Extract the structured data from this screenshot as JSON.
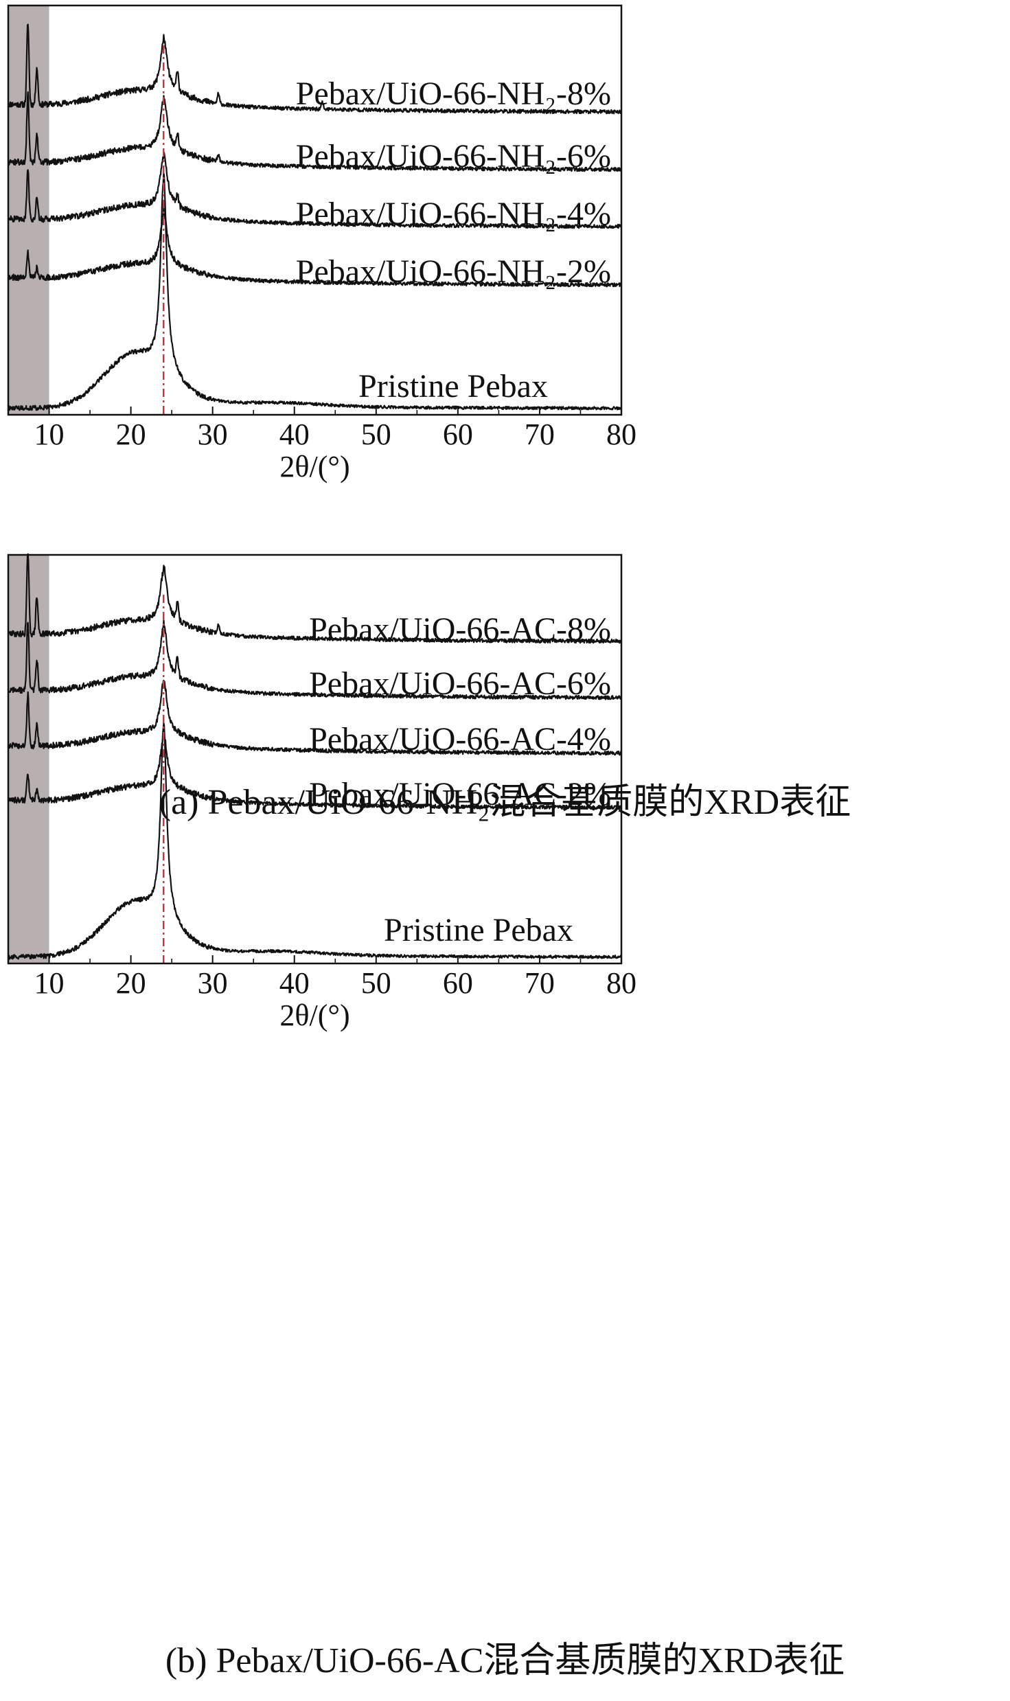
{
  "chart_data": [
    {
      "panel": "a",
      "type": "line",
      "caption": "(a) Pebax/UiO-66-NH₂混合基质膜的XRD表征",
      "xlabel": "2θ/(°)",
      "ylabel": "",
      "xlim": [
        5,
        80
      ],
      "xticks": [
        10,
        20,
        30,
        40,
        50,
        60,
        70,
        80
      ],
      "y_axis": "none (stacked offset traces, arbitrary intensity)",
      "shaded_region": [
        5,
        10
      ],
      "reference_line_x": 24,
      "grid": false,
      "series": [
        {
          "name": "Pebax/UiO-66-NH₂-8%",
          "sharp_peaks": [
            {
              "x": 7.4,
              "h": 1.0
            },
            {
              "x": 8.5,
              "h": 0.45
            },
            {
              "x": 25.7,
              "h": 0.25
            },
            {
              "x": 30.7,
              "h": 0.12
            },
            {
              "x": 43.4,
              "h": 0.08
            }
          ],
          "mof_loading": 8,
          "main_peak_x": 24.0,
          "text": "Pebax/UiO-66-NH₂-8%"
        },
        {
          "name": "Pebax/UiO-66-NH₂-6%",
          "sharp_peaks": [
            {
              "x": 7.4,
              "h": 0.85
            },
            {
              "x": 8.5,
              "h": 0.35
            },
            {
              "x": 25.7,
              "h": 0.18
            },
            {
              "x": 30.7,
              "h": 0.08
            }
          ],
          "mof_loading": 6,
          "main_peak_x": 24.0,
          "text": "Pebax/UiO-66-NH₂-6%"
        },
        {
          "name": "Pebax/UiO-66-NH₂-4%",
          "sharp_peaks": [
            {
              "x": 7.4,
              "h": 0.6
            },
            {
              "x": 8.5,
              "h": 0.25
            },
            {
              "x": 25.7,
              "h": 0.12
            }
          ],
          "mof_loading": 4,
          "main_peak_x": 24.0,
          "text": "Pebax/UiO-66-NH₂-4%"
        },
        {
          "name": "Pebax/UiO-66-NH₂-2%",
          "sharp_peaks": [
            {
              "x": 7.4,
              "h": 0.3
            },
            {
              "x": 8.5,
              "h": 0.12
            }
          ],
          "mof_loading": 2,
          "main_peak_x": 24.0,
          "text": "Pebax/UiO-66-NH₂-2%"
        },
        {
          "name": "Pristine Pebax",
          "sharp_peaks": [],
          "mof_loading": 0,
          "main_peak_x": 24.0,
          "text": "Pristine Pebax"
        }
      ]
    },
    {
      "panel": "b",
      "type": "line",
      "caption": "(b) Pebax/UiO-66-AC混合基质膜的XRD表征",
      "xlabel": "2θ/(°)",
      "ylabel": "",
      "xlim": [
        5,
        80
      ],
      "xticks": [
        10,
        20,
        30,
        40,
        50,
        60,
        70,
        80
      ],
      "y_axis": "none (stacked offset traces, arbitrary intensity)",
      "shaded_region": [
        5,
        10
      ],
      "reference_line_x": 24,
      "grid": false,
      "series": [
        {
          "name": "Pebax/UiO-66-AC-8%",
          "sharp_peaks": [
            {
              "x": 7.4,
              "h": 1.0
            },
            {
              "x": 8.5,
              "h": 0.45
            },
            {
              "x": 25.7,
              "h": 0.2
            },
            {
              "x": 30.7,
              "h": 0.1
            }
          ],
          "mof_loading": 8,
          "main_peak_x": 24.0,
          "text": "Pebax/UiO-66-AC-8%"
        },
        {
          "name": "Pebax/UiO-66-AC-6%",
          "sharp_peaks": [
            {
              "x": 7.4,
              "h": 0.85
            },
            {
              "x": 8.5,
              "h": 0.38
            },
            {
              "x": 25.7,
              "h": 0.22
            }
          ],
          "mof_loading": 6,
          "main_peak_x": 24.0,
          "text": "Pebax/UiO-66-AC-6%"
        },
        {
          "name": "Pebax/UiO-66-AC-4%",
          "sharp_peaks": [
            {
              "x": 7.4,
              "h": 0.62
            },
            {
              "x": 8.5,
              "h": 0.25
            }
          ],
          "mof_loading": 4,
          "main_peak_x": 24.0,
          "text": "Pebax/UiO-66-AC-4%"
        },
        {
          "name": "Pebax/UiO-66-AC-2%",
          "sharp_peaks": [
            {
              "x": 7.4,
              "h": 0.32
            },
            {
              "x": 8.5,
              "h": 0.12
            }
          ],
          "mof_loading": 2,
          "main_peak_x": 24.0,
          "text": "Pebax/UiO-66-AC-2%"
        },
        {
          "name": "Pristine Pebax",
          "sharp_peaks": [],
          "mof_loading": 0,
          "main_peak_x": 24.0,
          "text": "Pristine Pebax"
        }
      ]
    }
  ],
  "colors": {
    "trace": "#111111",
    "axis": "#111111",
    "shaded_region": "#b8b0b0",
    "reference_line": "#cc3344"
  }
}
